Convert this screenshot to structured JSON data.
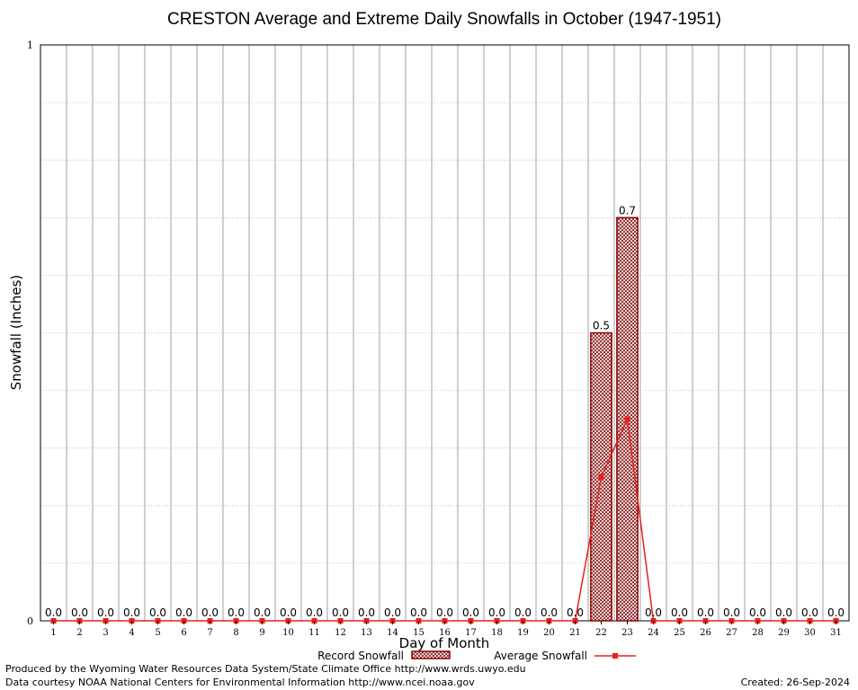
{
  "chart_data": {
    "type": "bar",
    "title": "CRESTON Average and Extreme Daily Snowfalls in October (1947-1951)",
    "xlabel": "Day of Month",
    "ylabel": "Snowfall (Inches)",
    "ylim": [
      0,
      1
    ],
    "yticks": [
      "0",
      "1"
    ],
    "categories": [
      "1",
      "2",
      "3",
      "4",
      "5",
      "6",
      "7",
      "8",
      "9",
      "10",
      "11",
      "12",
      "13",
      "14",
      "15",
      "16",
      "17",
      "18",
      "19",
      "20",
      "21",
      "22",
      "23",
      "24",
      "25",
      "26",
      "27",
      "28",
      "29",
      "30",
      "31"
    ],
    "series": [
      {
        "name": "Record Snowfall",
        "kind": "bar",
        "values": [
          0,
          0,
          0,
          0,
          0,
          0,
          0,
          0,
          0,
          0,
          0,
          0,
          0,
          0,
          0,
          0,
          0,
          0,
          0,
          0,
          0,
          0.5,
          0.7,
          0,
          0,
          0,
          0,
          0,
          0,
          0,
          0
        ],
        "labels": [
          "0.0",
          "0.0",
          "0.0",
          "0.0",
          "0.0",
          "0.0",
          "0.0",
          "0.0",
          "0.0",
          "0.0",
          "0.0",
          "0.0",
          "0.0",
          "0.0",
          "0.0",
          "0.0",
          "0.0",
          "0.0",
          "0.0",
          "0.0",
          "0.0",
          "0.5",
          "0.7",
          "0.0",
          "0.0",
          "0.0",
          "0.0",
          "0.0",
          "0.0",
          "0.0",
          "0.0"
        ]
      },
      {
        "name": "Average Snowfall",
        "kind": "line",
        "values": [
          0,
          0,
          0,
          0,
          0,
          0,
          0,
          0,
          0,
          0,
          0,
          0,
          0,
          0,
          0,
          0,
          0,
          0,
          0,
          0,
          0,
          0.25,
          0.35,
          0,
          0,
          0,
          0,
          0,
          0,
          0,
          0
        ]
      }
    ],
    "grid": true,
    "legend_position": "bottom-center",
    "colors": {
      "bar_fill": "#d9b8b4",
      "bar_edge": "#8b0000",
      "line": "#e8201f",
      "grid_major": "#a0a0a0",
      "grid_minor": "#b8b8b8"
    }
  },
  "footer": {
    "left_line1": "Produced by the Wyoming Water Resources Data System/State Climate Office http://www.wrds.uwyo.edu",
    "left_line2": "Data courtesy NOAA National Centers for Environmental Information http://www.ncei.noaa.gov",
    "right": "Created:  26-Sep-2024"
  }
}
